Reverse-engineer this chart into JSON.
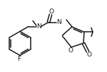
{
  "bg_color": "#ffffff",
  "line_color": "#1a1a1a",
  "line_width": 1.1,
  "font_size": 6.0,
  "figsize": [
    1.5,
    1.02
  ],
  "dpi": 100,
  "xlim": [
    0,
    150
  ],
  "ylim": [
    5,
    100
  ]
}
